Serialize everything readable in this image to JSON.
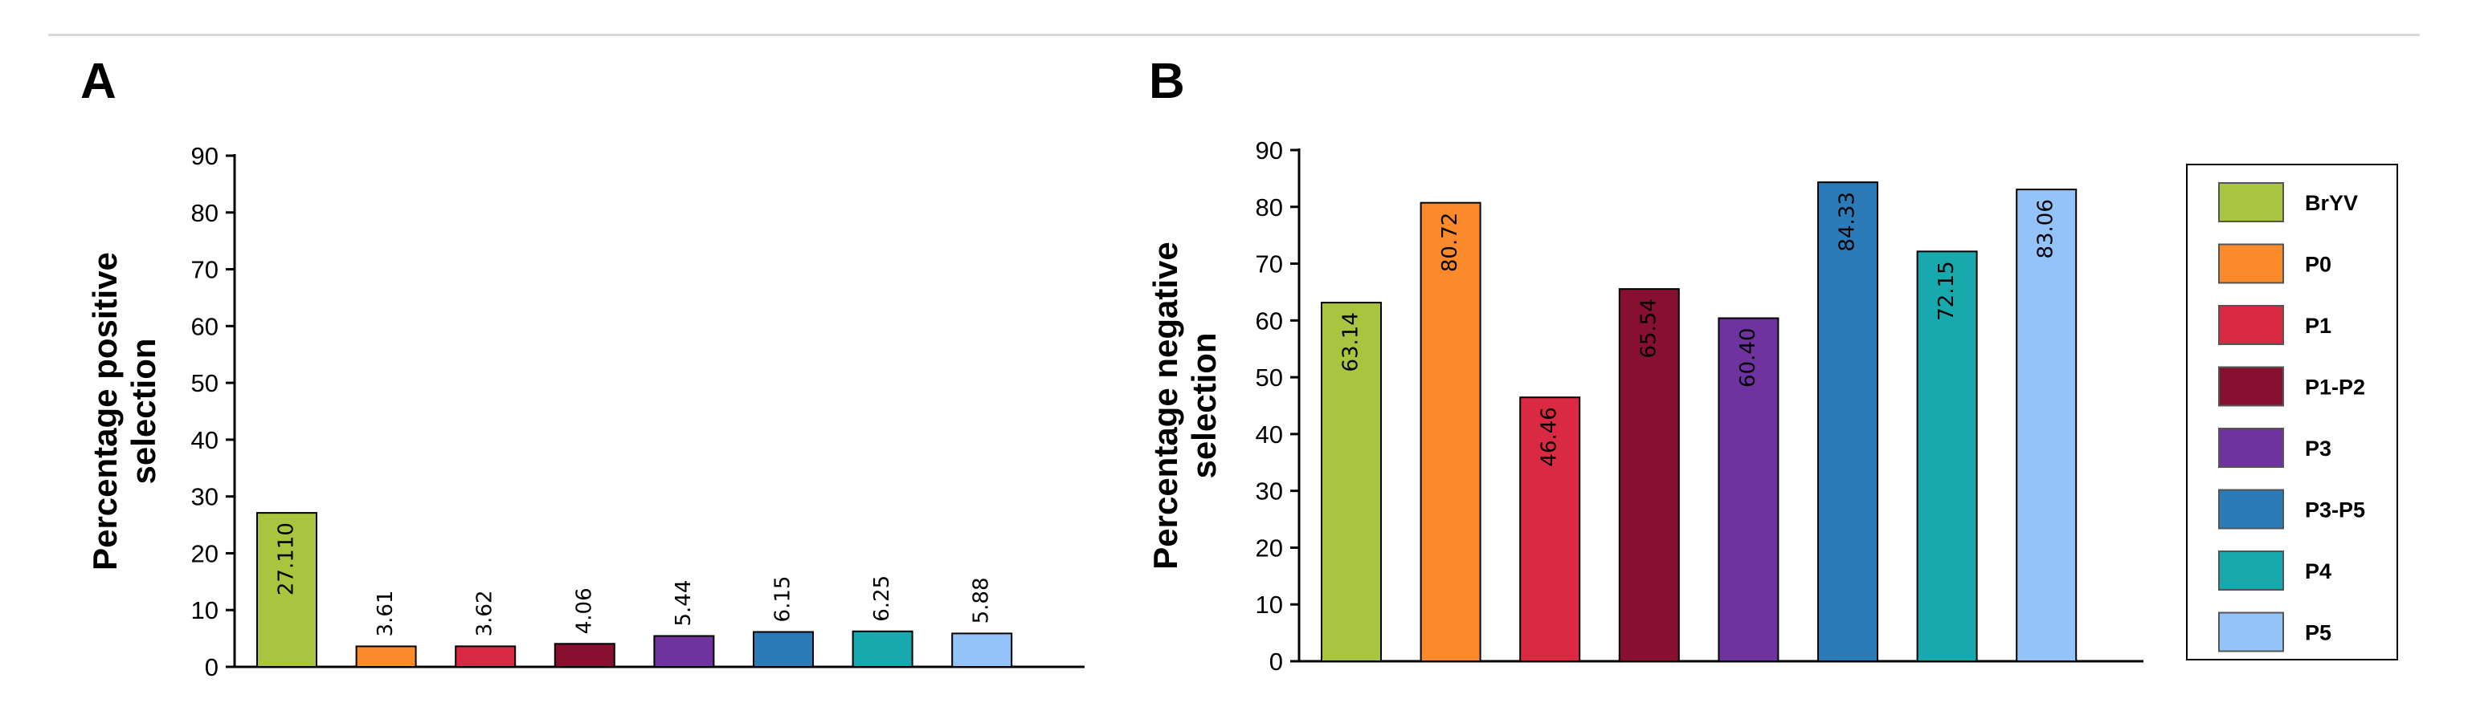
{
  "colors": {
    "BrYV": "#a9c43f",
    "P0": "#fb8a2a",
    "P1": "#da2a43",
    "P1-P2": "#870f2f",
    "P3": "#6f33a0",
    "P3-P5": "#2a7bb8",
    "P4": "#18a9ae",
    "P5": "#93c3f9"
  },
  "chart_data": [
    {
      "type": "bar",
      "panel": "A",
      "title": "",
      "ylabel": [
        "Percentage positive",
        "selection"
      ],
      "xlabel": "",
      "ylim": [
        0,
        90
      ],
      "yticks": [
        0,
        10,
        20,
        30,
        40,
        50,
        60,
        70,
        80,
        90
      ],
      "categories": [
        "BrYV",
        "P0",
        "P1",
        "P1-P2",
        "P3",
        "P3-P5",
        "P4",
        "P5"
      ],
      "values": [
        27.11,
        3.61,
        3.62,
        4.06,
        5.44,
        6.15,
        6.25,
        5.88
      ],
      "value_labels": [
        "27.110",
        "3.61",
        "3.62",
        "4.06",
        "5.44",
        "6.15",
        "6.25",
        "5.88"
      ]
    },
    {
      "type": "bar",
      "panel": "B",
      "title": "",
      "ylabel": [
        "Percentage negative",
        "selection"
      ],
      "xlabel": "",
      "ylim": [
        0,
        90
      ],
      "yticks": [
        0,
        10,
        20,
        30,
        40,
        50,
        60,
        70,
        80,
        90
      ],
      "categories": [
        "BrYV",
        "P0",
        "P1",
        "P1-P2",
        "P3",
        "P3-P5",
        "P4",
        "P5"
      ],
      "values": [
        63.14,
        80.72,
        46.46,
        65.54,
        60.4,
        84.33,
        72.15,
        83.06
      ],
      "value_labels": [
        "63.14",
        "80.72",
        "46.46",
        "65.54",
        "60.40",
        "84.33",
        "72.15",
        "83.06"
      ],
      "legend": {
        "position": "right",
        "entries": [
          "BrYV",
          "P0",
          "P1",
          "P1-P2",
          "P3",
          "P3-P5",
          "P4",
          "P5"
        ]
      }
    }
  ]
}
